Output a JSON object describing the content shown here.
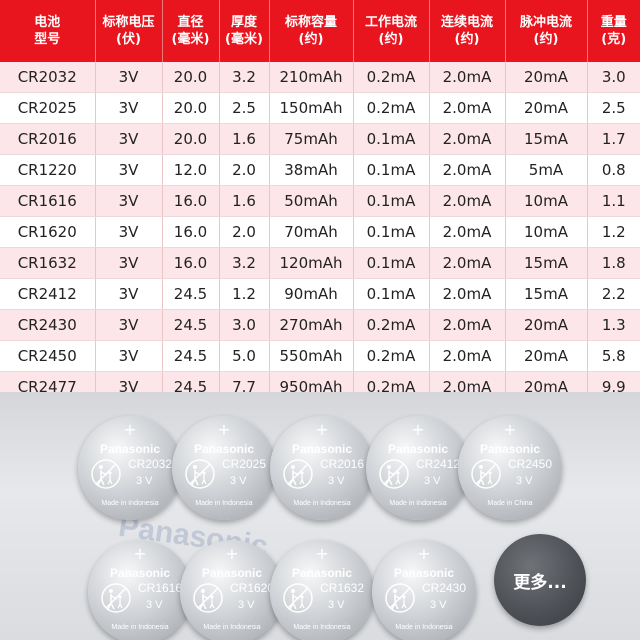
{
  "table": {
    "headers": [
      [
        "电池",
        "型号"
      ],
      [
        "标称电压",
        "(伏)"
      ],
      [
        "直径",
        "(毫米)"
      ],
      [
        "厚度",
        "(毫米)"
      ],
      [
        "标称容量",
        "(约)"
      ],
      [
        "工作电流",
        "(约)"
      ],
      [
        "连续电流",
        "(约)"
      ],
      [
        "脉冲电流",
        "(约)"
      ],
      [
        "重量",
        "(克)"
      ]
    ],
    "rows": [
      [
        "CR2032",
        "3V",
        "20.0",
        "3.2",
        "210mAh",
        "0.2mA",
        "2.0mA",
        "20mA",
        "3.0"
      ],
      [
        "CR2025",
        "3V",
        "20.0",
        "2.5",
        "150mAh",
        "0.2mA",
        "2.0mA",
        "20mA",
        "2.5"
      ],
      [
        "CR2016",
        "3V",
        "20.0",
        "1.6",
        "75mAh",
        "0.1mA",
        "2.0mA",
        "15mA",
        "1.7"
      ],
      [
        "CR1220",
        "3V",
        "12.0",
        "2.0",
        "38mAh",
        "0.1mA",
        "2.0mA",
        "5mA",
        "0.8"
      ],
      [
        "CR1616",
        "3V",
        "16.0",
        "1.6",
        "50mAh",
        "0.1mA",
        "2.0mA",
        "10mA",
        "1.1"
      ],
      [
        "CR1620",
        "3V",
        "16.0",
        "2.0",
        "70mAh",
        "0.1mA",
        "2.0mA",
        "10mA",
        "1.2"
      ],
      [
        "CR1632",
        "3V",
        "16.0",
        "3.2",
        "120mAh",
        "0.1mA",
        "2.0mA",
        "15mA",
        "1.8"
      ],
      [
        "CR2412",
        "3V",
        "24.5",
        "1.2",
        "90mAh",
        "0.1mA",
        "2.0mA",
        "15mA",
        "2.2"
      ],
      [
        "CR2430",
        "3V",
        "24.5",
        "3.0",
        "270mAh",
        "0.2mA",
        "2.0mA",
        "20mA",
        "1.3"
      ],
      [
        "CR2450",
        "3V",
        "24.5",
        "5.0",
        "550mAh",
        "0.2mA",
        "2.0mA",
        "20mA",
        "5.8"
      ],
      [
        "CR2477",
        "3V",
        "24.5",
        "7.7",
        "950mAh",
        "0.2mA",
        "2.0mA",
        "20mA",
        "9.9"
      ]
    ]
  },
  "photo": {
    "watermark": "Panasonic",
    "coins": [
      {
        "brand": "Panasonic",
        "model": "CR2032",
        "voltage": "3 V",
        "origin": "Made in Indonesia"
      },
      {
        "brand": "Panasonic",
        "model": "CR2025",
        "voltage": "3 V",
        "origin": "Made in Indonesia"
      },
      {
        "brand": "Panasonic",
        "model": "CR2016",
        "voltage": "3 V",
        "origin": "Made in Indonesia"
      },
      {
        "brand": "Panasonic",
        "model": "CR2412",
        "voltage": "3 V",
        "origin": "Made in Indonesia"
      },
      {
        "brand": "Panasonic",
        "model": "CR2450",
        "voltage": "3 V",
        "origin": "Made in China"
      },
      {
        "brand": "Panasonic",
        "model": "CR1616",
        "voltage": "3 V",
        "origin": "Made in Indonesia"
      },
      {
        "brand": "Panasonic",
        "model": "CR1620",
        "voltage": "3 V",
        "origin": "Made in Indonesia"
      },
      {
        "brand": "Panasonic",
        "model": "CR1632",
        "voltage": "3 V",
        "origin": "Made in Indonesia"
      },
      {
        "brand": "Panasonic",
        "model": "CR2430",
        "voltage": "3 V",
        "origin": "Made in Indonesia"
      }
    ],
    "more_label": "更多..."
  },
  "colors": {
    "header_red": "#e8141e",
    "row_pink": "#fde6e9",
    "row_white": "#ffffff"
  }
}
